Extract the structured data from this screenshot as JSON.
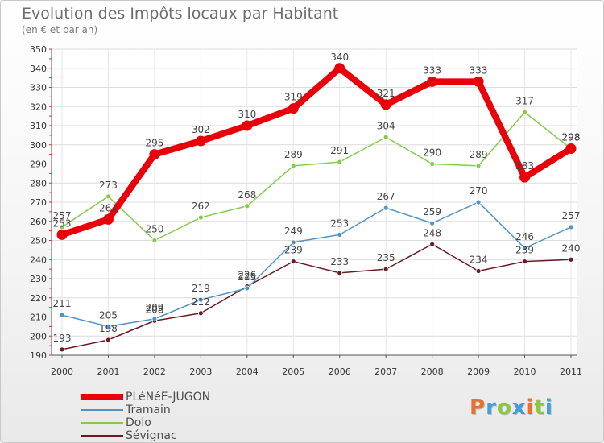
{
  "title": "Evolution des Impôts locaux par Habitant",
  "subtitle": "(en € et par an)",
  "logo": {
    "letters": [
      "P",
      "r",
      "o",
      "x",
      "i",
      "t",
      "i"
    ],
    "colors": [
      "#e8712d",
      "#3ea0d8",
      "#8cc63f",
      "#3ea0d8",
      "#e8712d",
      "#8cc63f",
      "#3ea0d8"
    ]
  },
  "chart_data": {
    "type": "line",
    "categories": [
      "2000",
      "2001",
      "2002",
      "2003",
      "2004",
      "2005",
      "2006",
      "2007",
      "2008",
      "2009",
      "2010",
      "2011"
    ],
    "ylim": [
      190,
      350
    ],
    "yticks": [
      190,
      200,
      210,
      220,
      230,
      240,
      250,
      260,
      270,
      280,
      290,
      300,
      310,
      320,
      330,
      340,
      350
    ],
    "xlabel": "",
    "ylabel": "",
    "legend_position": "bottom-left",
    "series": [
      {
        "name": "PLéNéE-JUGON",
        "color": "#e8000b",
        "values": [
          253,
          261,
          295,
          302,
          310,
          319,
          340,
          321,
          333,
          333,
          283,
          298
        ]
      },
      {
        "name": "Tramain",
        "color": "#4f93c8",
        "values": [
          211,
          205,
          209,
          219,
          225,
          249,
          253,
          267,
          259,
          270,
          246,
          257
        ]
      },
      {
        "name": "Dolo",
        "color": "#84cc47",
        "values": [
          257,
          273,
          250,
          262,
          268,
          289,
          291,
          304,
          290,
          289,
          317,
          298
        ]
      },
      {
        "name": "Sévignac",
        "color": "#6b1a22",
        "values": [
          193,
          198,
          208,
          212,
          226,
          239,
          233,
          235,
          248,
          234,
          239,
          240
        ]
      }
    ]
  }
}
